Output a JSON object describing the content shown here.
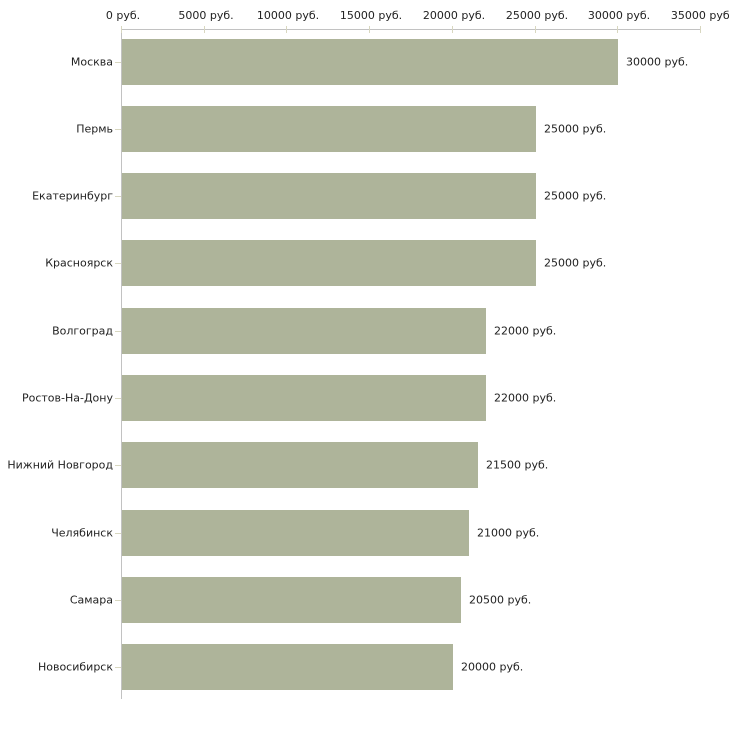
{
  "chart_data": {
    "type": "bar",
    "orientation": "horizontal",
    "title": "",
    "xlabel": "",
    "ylabel": "",
    "unit": "руб.",
    "categories": [
      "Москва",
      "Пермь",
      "Екатеринбург",
      "Красноярск",
      "Волгоград",
      "Ростов-На-Дону",
      "Нижний Новгород",
      "Челябинск",
      "Самара",
      "Новосибирск"
    ],
    "values": [
      30000,
      25000,
      25000,
      25000,
      22000,
      22000,
      21500,
      21000,
      20500,
      20000
    ],
    "value_labels": [
      "30000 руб.",
      "25000 руб.",
      "25000 руб.",
      "25000 руб.",
      "22000 руб.",
      "22000 руб.",
      "21500 руб.",
      "21000 руб.",
      "20500 руб.",
      "20000 руб."
    ],
    "x_ticks": {
      "values": [
        0,
        5000,
        10000,
        15000,
        20000,
        25000,
        30000,
        35000
      ],
      "labels": [
        "0 руб.",
        "5000 руб.",
        "10000 руб.",
        "15000 руб.",
        "20000 руб.",
        "25000 руб.",
        "30000 руб.",
        "35000 руб."
      ]
    },
    "xlim": [
      0,
      35000
    ],
    "grid": false,
    "legend": null,
    "colors": {
      "bar": "#aeb49a",
      "axis": "#c2c2c2",
      "tick": "#d8d7c0",
      "text": "#222222",
      "background": "#ffffff"
    }
  }
}
